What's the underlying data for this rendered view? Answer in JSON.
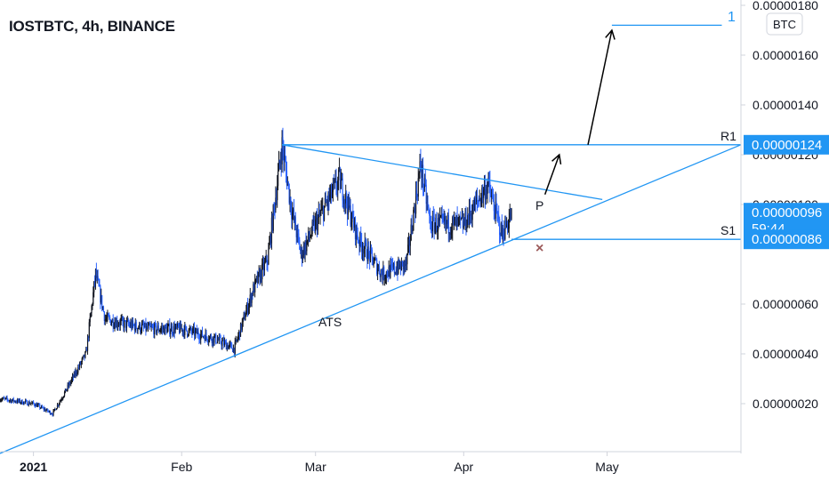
{
  "header": {
    "title": "IOSTBTC, 4h, BINANCE"
  },
  "price_axis": {
    "currency": "BTC",
    "scale_badge": "1",
    "ticks": [
      {
        "value": 1.8e-06,
        "label": "0.00000180"
      },
      {
        "value": 1.6e-06,
        "label": "0.00000160"
      },
      {
        "value": 1.4e-06,
        "label": "0.00000140"
      },
      {
        "value": 1.2e-06,
        "label": "0.00000120"
      },
      {
        "value": 1e-06,
        "label": "0.00000100"
      },
      {
        "value": 6e-07,
        "label": "0.00000060"
      },
      {
        "value": 4e-07,
        "label": "0.00000040"
      },
      {
        "value": 2e-07,
        "label": "0.00000020"
      }
    ],
    "tags": {
      "resistance": {
        "value": 1.24e-06,
        "label": "0.00000124",
        "color": "#2196f3"
      },
      "current": {
        "value": 9.6e-07,
        "label": "0.00000096",
        "countdown": "59:44",
        "color": "#2196f3"
      },
      "support": {
        "value": 8.6e-07,
        "label": "0.00000086",
        "color": "#2196f3"
      }
    }
  },
  "time_axis": {
    "labels": [
      {
        "date": "2021-01-01",
        "label": "2021",
        "bold": true
      },
      {
        "date": "2021-02-01",
        "label": "Feb"
      },
      {
        "date": "2021-03-01",
        "label": "Mar"
      },
      {
        "date": "2021-04-01",
        "label": "Apr"
      },
      {
        "date": "2021-05-01",
        "label": "May"
      }
    ]
  },
  "annotations": {
    "r1_label": "R1",
    "s1_label": "S1",
    "p_label": "P",
    "ats_label": "ATS",
    "x_mark": "×"
  },
  "colors": {
    "up": "#131722",
    "down": "#2962ff",
    "line": "#2196f3",
    "arrow": "#000000",
    "x_mark": "#9c5a5a",
    "grid": "#e0e3eb"
  },
  "chart_data": {
    "type": "candlestick",
    "title": "IOSTBTC, 4h, BINANCE",
    "xlabel": "",
    "ylabel": "BTC",
    "ylim": [
      0,
      1.8e-06
    ],
    "xlim": [
      "2020-12-25",
      "2021-05-29"
    ],
    "grid": false,
    "series": [
      {
        "values": [
          {
            "x": "2020-12-25",
            "y": 2.2e-07
          },
          {
            "x": "2021-01-01",
            "y": 2e-07
          },
          {
            "x": "2021-01-05",
            "y": 1.6e-07
          },
          {
            "x": "2021-01-08",
            "y": 2.6e-07
          },
          {
            "x": "2021-01-12",
            "y": 4e-07
          },
          {
            "x": "2021-01-14",
            "y": 7.2e-07
          },
          {
            "x": "2021-01-16",
            "y": 5.4e-07
          },
          {
            "x": "2021-01-20",
            "y": 5.2e-07
          },
          {
            "x": "2021-01-25",
            "y": 5e-07
          },
          {
            "x": "2021-02-01",
            "y": 5e-07
          },
          {
            "x": "2021-02-08",
            "y": 4.6e-07
          },
          {
            "x": "2021-02-12",
            "y": 4.2e-07
          },
          {
            "x": "2021-02-16",
            "y": 6.6e-07
          },
          {
            "x": "2021-02-19",
            "y": 7.8e-07
          },
          {
            "x": "2021-02-22",
            "y": 1.24e-06
          },
          {
            "x": "2021-02-24",
            "y": 9.8e-07
          },
          {
            "x": "2021-02-26",
            "y": 8e-07
          },
          {
            "x": "2021-03-01",
            "y": 9.2e-07
          },
          {
            "x": "2021-03-06",
            "y": 1.1e-06
          },
          {
            "x": "2021-03-10",
            "y": 8.6e-07
          },
          {
            "x": "2021-03-15",
            "y": 7.2e-07
          },
          {
            "x": "2021-03-20",
            "y": 7.6e-07
          },
          {
            "x": "2021-03-23",
            "y": 1.16e-06
          },
          {
            "x": "2021-03-25",
            "y": 9.2e-07
          },
          {
            "x": "2021-04-01",
            "y": 9.2e-07
          },
          {
            "x": "2021-04-06",
            "y": 1.08e-06
          },
          {
            "x": "2021-04-09",
            "y": 8.8e-07
          },
          {
            "x": "2021-04-11",
            "y": 9.6e-07
          }
        ]
      }
    ],
    "lines": [
      {
        "name": "R1",
        "kind": "horizontal",
        "from": {
          "x": "2021-02-22",
          "y": 1.24e-06
        },
        "to": {
          "x": "2021-05-29",
          "y": 1.24e-06
        }
      },
      {
        "name": "S1",
        "kind": "horizontal",
        "from": {
          "x": "2021-04-11",
          "y": 8.6e-07
        },
        "to": {
          "x": "2021-05-29",
          "y": 8.6e-07
        }
      },
      {
        "name": "resistance-trendline",
        "from": {
          "x": "2021-02-22",
          "y": 1.24e-06
        },
        "to": {
          "x": "2021-04-30",
          "y": 1.02e-06
        }
      },
      {
        "name": "ATS",
        "from": {
          "x": "2020-12-25",
          "y": 0.0
        },
        "to": {
          "x": "2021-05-29",
          "y": 1.24e-06
        }
      },
      {
        "name": "target",
        "kind": "horizontal",
        "from": {
          "x": "2021-05-02",
          "y": 1.72e-06
        },
        "to": {
          "x": "2021-05-25",
          "y": 1.72e-06
        }
      }
    ],
    "arrows": [
      {
        "from": {
          "x": "2021-04-18",
          "y": 1.04e-06
        },
        "to": {
          "x": "2021-04-21",
          "y": 1.2e-06
        }
      },
      {
        "from": {
          "x": "2021-04-27",
          "y": 1.24e-06
        },
        "to": {
          "x": "2021-05-02",
          "y": 1.7e-06
        }
      }
    ]
  }
}
